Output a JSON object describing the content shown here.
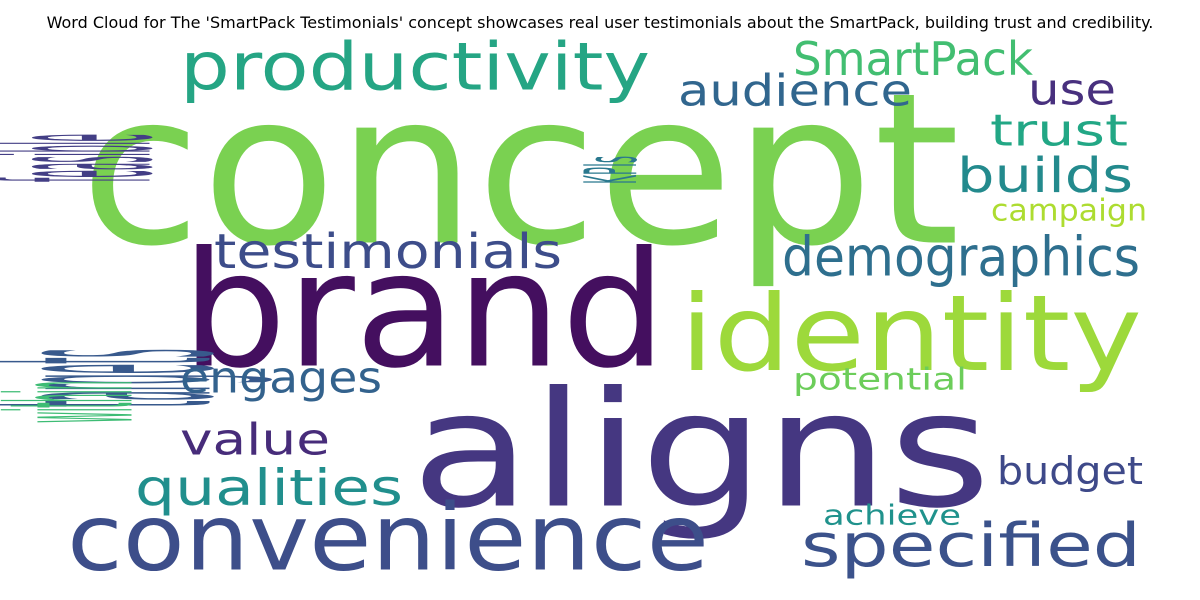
{
  "title": "Word Cloud for The 'SmartPack Testimonials' concept showcases real user testimonials about the SmartPack, building trust and credibility.",
  "words": [
    {
      "text": "concept",
      "color": "#7ad151"
    },
    {
      "text": "brand",
      "color": "#440f5f"
    },
    {
      "text": "aligns",
      "color": "#453781"
    },
    {
      "text": "identity",
      "color": "#9dd93b"
    },
    {
      "text": "convenience",
      "color": "#3d4e8a"
    },
    {
      "text": "productivity",
      "color": "#25a584"
    },
    {
      "text": "specified",
      "color": "#3b528b"
    },
    {
      "text": "targets",
      "color": "#38598c"
    },
    {
      "text": "demographics",
      "color": "#2e6f8e"
    },
    {
      "text": "testimonials",
      "color": "#3d4d8a"
    },
    {
      "text": "qualities",
      "color": "#218f8d"
    },
    {
      "text": "SmartPack",
      "color": "#42be71"
    },
    {
      "text": "audience",
      "color": "#31668e"
    },
    {
      "text": "builds",
      "color": "#238a8d"
    },
    {
      "text": "engages",
      "color": "#33628d"
    },
    {
      "text": "trust",
      "color": "#22a785"
    },
    {
      "text": "use",
      "color": "#48307e"
    },
    {
      "text": "value",
      "color": "#472c7a"
    },
    {
      "text": "feasible",
      "color": "#433e85"
    },
    {
      "text": "within",
      "color": "#3dbc74"
    },
    {
      "text": "budget",
      "color": "#3e4989"
    },
    {
      "text": "potential",
      "color": "#6ccd5a"
    },
    {
      "text": "campaign",
      "color": "#addc30"
    },
    {
      "text": "KPIs",
      "color": "#2a788e"
    },
    {
      "text": "achieve",
      "color": "#20928c"
    }
  ]
}
